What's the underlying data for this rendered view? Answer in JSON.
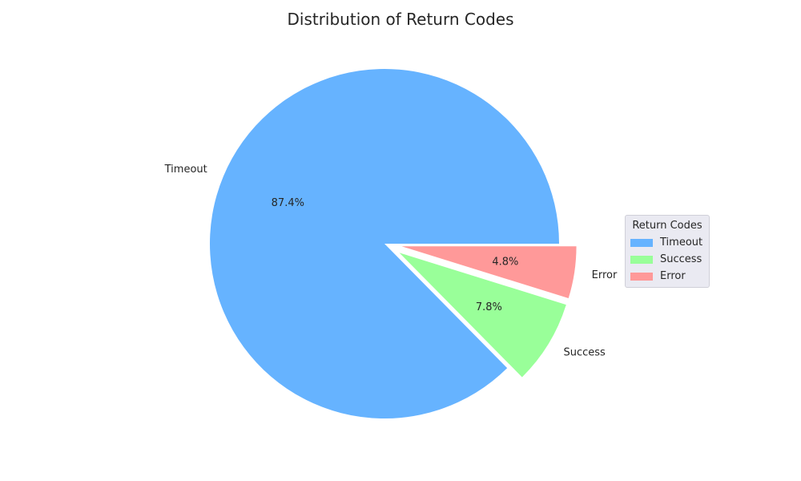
{
  "chart_data": {
    "type": "pie",
    "title": "Distribution of Return Codes",
    "categories": [
      "Timeout",
      "Success",
      "Error"
    ],
    "values": [
      87.4,
      7.8,
      4.8
    ],
    "value_labels": [
      "87.4%",
      "7.8%",
      "4.8%"
    ],
    "colors": [
      "#66b3ff",
      "#99ff99",
      "#ff9999"
    ],
    "exploded": [
      false,
      true,
      true
    ],
    "legend": {
      "title": "Return Codes",
      "placement": "center-right",
      "entries": [
        "Timeout",
        "Success",
        "Error"
      ]
    }
  }
}
